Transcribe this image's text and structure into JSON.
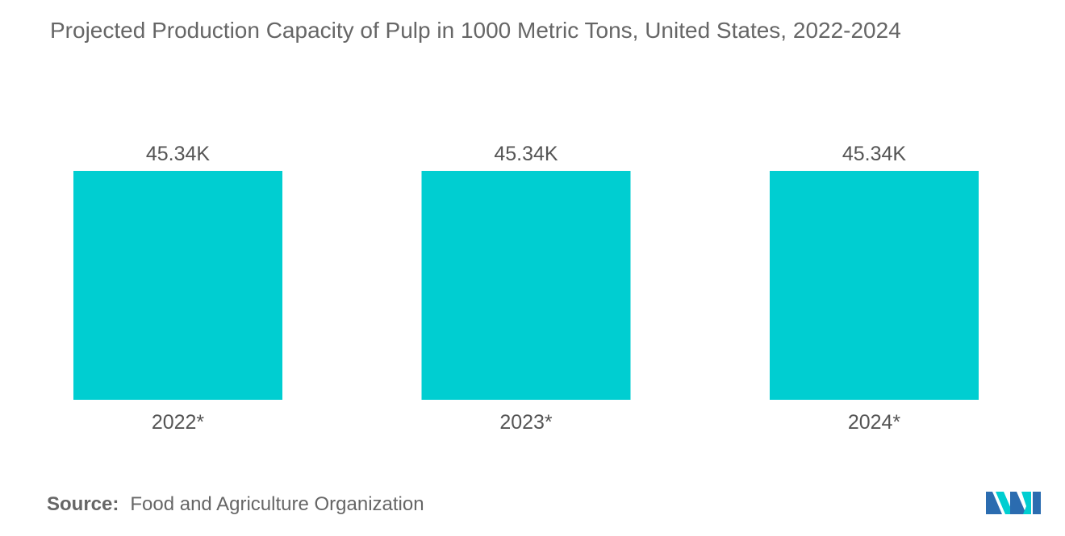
{
  "chart_data": {
    "type": "bar",
    "title": "Projected Production Capacity of Pulp in 1000 Metric Tons, United States, 2022-2024",
    "categories": [
      "2022*",
      "2023*",
      "2024*"
    ],
    "values": [
      45340,
      45340,
      45340
    ],
    "data_labels": [
      "45.34K",
      "45.34K",
      "45.34K"
    ],
    "xlabel": "",
    "ylabel": "",
    "ylim": [
      0,
      45340
    ],
    "grid": false,
    "legend": "none",
    "bar_color": "#00CED1"
  },
  "source": {
    "label": "Source:",
    "text": "Food and Agriculture Organization"
  },
  "logo": {
    "icon": "mordor-intelligence-logo-icon",
    "colors": [
      "#2B6CB0",
      "#00CED1"
    ]
  }
}
